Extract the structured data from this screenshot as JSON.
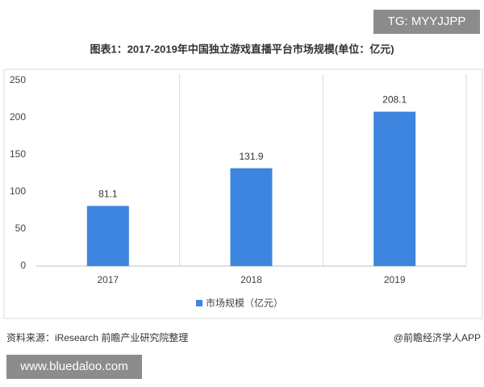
{
  "watermark": "TG: MYYJJPP",
  "source": "资料来源：iResearch 前瞻产业研究院整理",
  "credit": "@前瞻经济学人APP",
  "site": "www.bluedaloo.com",
  "chart_data": {
    "type": "bar",
    "title": "图表1：2017-2019年中国独立游戏直播平台市场规模(单位：亿元)",
    "categories": [
      "2017",
      "2018",
      "2019"
    ],
    "series": [
      {
        "name": "市场规模（亿元）",
        "color": "#3d85de",
        "values": [
          81.1,
          131.9,
          208.1
        ]
      }
    ],
    "ylim": [
      0,
      250
    ],
    "yticks": [
      0,
      50,
      100,
      150,
      200,
      250
    ]
  }
}
